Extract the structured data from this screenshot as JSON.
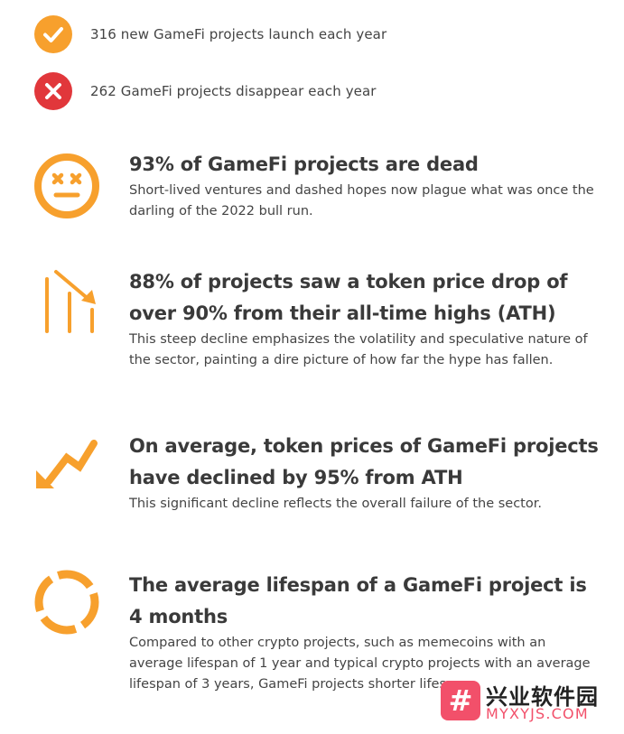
{
  "stats": [
    {
      "icon": "check-icon",
      "color": "#f7a02d",
      "text": "316 new GameFi projects launch each year"
    },
    {
      "icon": "x-icon",
      "color": "#e1373b",
      "text": "262 GameFi projects disappear each year"
    }
  ],
  "features": [
    {
      "icon": "dead-face-icon",
      "title": "93% of GameFi projects are dead",
      "desc": "Short-lived ventures and dashed hopes now plague what was once the darling of the 2022 bull run."
    },
    {
      "icon": "declining-bars-icon",
      "title": "88% of projects saw a token price drop of over 90% from their all-time highs (ATH)",
      "desc": "This steep decline emphasizes the volatility and speculative nature of the sector, painting a dire picture of how far the hype has fallen."
    },
    {
      "icon": "downtrend-arrow-icon",
      "title": "On average, token prices of GameFi projects have declined by 95% from ATH",
      "desc": "This significant decline reflects the overall failure of the sector."
    },
    {
      "icon": "broken-ring-icon",
      "title": "The average lifespan of a GameFi project is 4 months",
      "desc": "Compared to other crypto projects, such as memecoins with an average lifespan of 1 year and typical crypto projects with an average lifespan of 3 years, GameFi projects shorter lifespan"
    }
  ],
  "accent_color": "#f7a02d",
  "watermark": {
    "glyph": "#",
    "title": "兴业软件园",
    "subtitle": "MYXYJS.COM"
  }
}
